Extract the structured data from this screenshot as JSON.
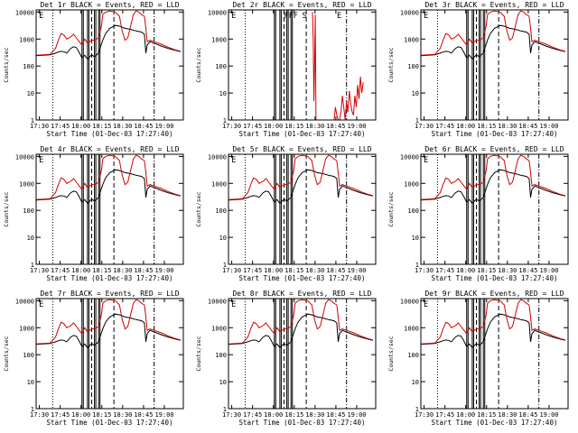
{
  "figure_title": "",
  "colors": {
    "events": "#000000",
    "lld": "#d40000",
    "frame": "#000000",
    "background": "#ffffff"
  },
  "chart_data": {
    "type": "line",
    "layout": "3x3 grid",
    "x_units": "minutes since 17:27:40",
    "x_ticks": [
      {
        "label": "17:30",
        "value": 2.33
      },
      {
        "label": "17:45",
        "value": 17.33
      },
      {
        "label": "18:00",
        "value": 32.33
      },
      {
        "label": "18:15",
        "value": 47.33
      },
      {
        "label": "18:30",
        "value": 62.33
      },
      {
        "label": "18:45",
        "value": 77.33
      },
      {
        "label": "19:00",
        "value": 92.33
      }
    ],
    "xlim": [
      0,
      106
    ],
    "y_scale": "log",
    "ylim": [
      1,
      12000
    ],
    "y_ticks": [
      {
        "label": "1",
        "value": 1
      },
      {
        "label": "10",
        "value": 10
      },
      {
        "label": "100",
        "value": 100
      },
      {
        "label": "1000",
        "value": 1000
      },
      {
        "label": "10000",
        "value": 10000
      }
    ],
    "xlabel": "Start Time (01-Dec-03 17:27:40)",
    "ylabel": "Counts/sec",
    "legend": "BLACK = Events, RED = LLD (in panel titles)",
    "series_common": [
      {
        "name": "Events",
        "color": "black",
        "x": [
          0,
          10,
          14,
          16,
          18,
          20,
          22,
          25,
          27,
          29,
          31,
          33,
          35,
          37,
          40,
          42,
          45,
          47,
          48,
          50,
          53,
          57,
          60,
          64,
          68,
          72,
          76,
          78,
          79,
          80,
          82,
          85,
          90,
          95,
          100,
          104
        ],
        "y": [
          240,
          260,
          300,
          330,
          350,
          340,
          300,
          450,
          520,
          480,
          320,
          200,
          250,
          180,
          260,
          220,
          300,
          650,
          900,
          1600,
          2500,
          3200,
          3000,
          2500,
          2300,
          2000,
          1800,
          1500,
          300,
          600,
          800,
          700,
          550,
          450,
          380,
          340
        ]
      },
      {
        "name": "LLD",
        "color": "red",
        "x": [
          0,
          10,
          14,
          16,
          18,
          20,
          22,
          25,
          27,
          29,
          31,
          33,
          35,
          37,
          40,
          42,
          45,
          47,
          48,
          50,
          53,
          57,
          60,
          62,
          64,
          66,
          68,
          70,
          72,
          74,
          76,
          78,
          79,
          80,
          82,
          85,
          90,
          95,
          100,
          104
        ],
        "y": [
          250,
          270,
          450,
          900,
          1600,
          1400,
          1000,
          1200,
          1500,
          1100,
          800,
          600,
          1000,
          700,
          900,
          900,
          1100,
          3000,
          8000,
          10000,
          11000,
          10000,
          7000,
          2000,
          900,
          1100,
          3000,
          8000,
          11000,
          10000,
          8000,
          7000,
          2500,
          800,
          900,
          800,
          650,
          500,
          400,
          350
        ]
      }
    ],
    "panels": [
      {
        "title": "Det 1r BLACK = Events, RED = LLD",
        "flags": [
          "E"
        ],
        "series": "common"
      },
      {
        "title": "Det 2r BLACK = Events, RED = LLD",
        "flags": [
          "E",
          "FFF",
          "S",
          "E"
        ],
        "series": [
          {
            "name": "LLD",
            "color": "red",
            "x": [
              60.5,
              61,
              61.5,
              62,
              62.5,
              63
            ],
            "y": [
              10000,
              1000,
              5,
              100,
              8000,
              1
            ]
          },
          {
            "name": "LLD",
            "color": "red",
            "x": [
              76,
              77,
              78,
              79,
              80,
              81,
              82,
              83,
              84,
              85,
              86,
              87,
              88,
              89,
              90,
              91,
              92,
              93,
              94,
              95,
              96,
              97
            ],
            "y": [
              1,
              3,
              1.5,
              1,
              1,
              2,
              8,
              3,
              1,
              5,
              2,
              12,
              4,
              2,
              1.5,
              8,
              3,
              20,
              6,
              40,
              10,
              25
            ]
          },
          {
            "name": "Events",
            "color": "black",
            "x": [
              70,
              75,
              80,
              85,
              90,
              95,
              100
            ],
            "y": [
              1,
              1,
              1,
              1,
              1,
              1,
              1
            ]
          }
        ]
      },
      {
        "title": "Det 3r BLACK = Events, RED = LLD",
        "flags": [
          "E"
        ],
        "series": "common"
      },
      {
        "title": "Det 4r BLACK = Events, RED = LLD",
        "flags": [
          "E"
        ],
        "series": "common"
      },
      {
        "title": "Det 5r BLACK = Events, RED = LLD",
        "flags": [
          "E"
        ],
        "series": "common"
      },
      {
        "title": "Det 6r BLACK = Events, RED = LLD",
        "flags": [
          "E"
        ],
        "series": "common"
      },
      {
        "title": "Det 7r BLACK = Events, RED = LLD",
        "flags": [
          "E"
        ],
        "series": "common"
      },
      {
        "title": "Det 8r BLACK = Events, RED = LLD",
        "flags": [
          "E"
        ],
        "series": "common"
      },
      {
        "title": "Det 9r BLACK = Events, RED = LLD",
        "flags": [
          "E"
        ],
        "series": "common"
      }
    ],
    "vertical_markers": [
      {
        "x": 12,
        "style": "dotted"
      },
      {
        "x": 40,
        "style": "dashed"
      },
      {
        "x": 56,
        "style": "dashed"
      },
      {
        "x": 85,
        "style": "dash-dot"
      }
    ],
    "attenuator_bars_x": [
      33,
      34,
      37,
      38,
      42,
      43,
      45,
      46
    ]
  }
}
